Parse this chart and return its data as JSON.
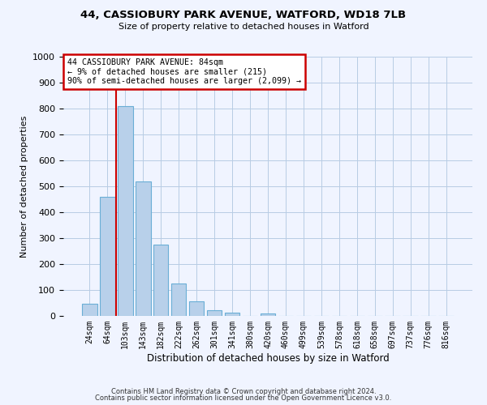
{
  "title1": "44, CASSIOBURY PARK AVENUE, WATFORD, WD18 7LB",
  "title2": "Size of property relative to detached houses in Watford",
  "xlabel": "Distribution of detached houses by size in Watford",
  "ylabel": "Number of detached properties",
  "bar_labels": [
    "24sqm",
    "64sqm",
    "103sqm",
    "143sqm",
    "182sqm",
    "222sqm",
    "262sqm",
    "301sqm",
    "341sqm",
    "380sqm",
    "420sqm",
    "460sqm",
    "499sqm",
    "539sqm",
    "578sqm",
    "618sqm",
    "658sqm",
    "697sqm",
    "737sqm",
    "776sqm",
    "816sqm"
  ],
  "bar_values": [
    47,
    460,
    810,
    520,
    275,
    125,
    57,
    22,
    13,
    0,
    8,
    0,
    0,
    0,
    0,
    0,
    0,
    0,
    0,
    0,
    0
  ],
  "bar_color": "#b8d0ea",
  "bar_edgecolor": "#6aaed6",
  "ylim": [
    0,
    1000
  ],
  "yticks": [
    0,
    100,
    200,
    300,
    400,
    500,
    600,
    700,
    800,
    900,
    1000
  ],
  "vline_color": "#cc0000",
  "annotation_title": "44 CASSIOBURY PARK AVENUE: 84sqm",
  "annotation_line1": "← 9% of detached houses are smaller (215)",
  "annotation_line2": "90% of semi-detached houses are larger (2,099) →",
  "annotation_box_color": "#cc0000",
  "footer1": "Contains HM Land Registry data © Crown copyright and database right 2024.",
  "footer2": "Contains public sector information licensed under the Open Government Licence v3.0.",
  "bg_color": "#f0f4ff",
  "grid_color": "#b8cce4"
}
